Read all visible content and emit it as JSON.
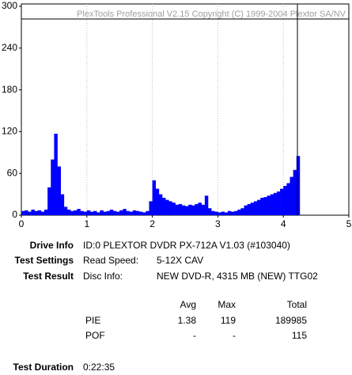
{
  "chart_data": {
    "type": "bar",
    "watermark": "PlexTools Professional V2.15 Copyright (C) 1999-2004 Plextor SA/NV",
    "x": [
      0,
      0.05,
      0.1,
      0.15,
      0.2,
      0.25,
      0.3,
      0.35,
      0.4,
      0.45,
      0.5,
      0.55,
      0.6,
      0.65,
      0.7,
      0.75,
      0.8,
      0.85,
      0.9,
      0.95,
      1,
      1.05,
      1.1,
      1.15,
      1.2,
      1.25,
      1.3,
      1.35,
      1.4,
      1.45,
      1.5,
      1.55,
      1.6,
      1.65,
      1.7,
      1.75,
      1.8,
      1.85,
      1.9,
      1.95,
      2,
      2.05,
      2.1,
      2.15,
      2.2,
      2.25,
      2.3,
      2.35,
      2.4,
      2.45,
      2.5,
      2.55,
      2.6,
      2.65,
      2.7,
      2.75,
      2.8,
      2.85,
      2.9,
      2.95,
      3,
      3.05,
      3.1,
      3.15,
      3.2,
      3.25,
      3.3,
      3.35,
      3.4,
      3.45,
      3.5,
      3.55,
      3.6,
      3.65,
      3.7,
      3.75,
      3.8,
      3.85,
      3.9,
      3.95,
      4,
      4.05,
      4.1,
      4.15,
      4.2
    ],
    "values": [
      6,
      7,
      5,
      8,
      6,
      7,
      5,
      8,
      40,
      80,
      117,
      70,
      30,
      12,
      8,
      6,
      7,
      9,
      6,
      5,
      7,
      5,
      6,
      4,
      7,
      5,
      6,
      8,
      6,
      5,
      7,
      9,
      6,
      5,
      7,
      6,
      5,
      4,
      6,
      20,
      50,
      38,
      30,
      25,
      22,
      20,
      18,
      15,
      16,
      14,
      13,
      15,
      14,
      16,
      18,
      15,
      28,
      10,
      6,
      5,
      4,
      5,
      4,
      6,
      5,
      6,
      8,
      10,
      14,
      16,
      18,
      20,
      22,
      25,
      26,
      28,
      30,
      32,
      34,
      38,
      42,
      46,
      55,
      65,
      85
    ],
    "color": "#0000ff",
    "xlim": [
      0,
      5
    ],
    "xticks": [
      0,
      1,
      2,
      3,
      4,
      5
    ],
    "ylim": [
      0,
      300
    ],
    "yticks": [
      0,
      60,
      120,
      180,
      240,
      300
    ],
    "grid": "x"
  },
  "info": {
    "drive_label": "Drive Info",
    "drive_value": "ID:0 PLEXTOR DVDR PX-712A V1.03 (#103040)",
    "settings_label": "Test Settings",
    "settings_key": "Read Speed:",
    "settings_value": "5-12X CAV",
    "result_label": "Test Result",
    "result_key": "Disc Info:",
    "result_value": "NEW DVD-R, 4315 MB (NEW) TTG02",
    "duration_label": "Test Duration",
    "duration_value": "0:22:35"
  },
  "table": {
    "header": [
      "Avg",
      "Max",
      "Total"
    ],
    "rows": [
      [
        "PIE",
        1.38,
        119,
        189985
      ],
      [
        "POF",
        "-",
        "-",
        115
      ]
    ]
  }
}
